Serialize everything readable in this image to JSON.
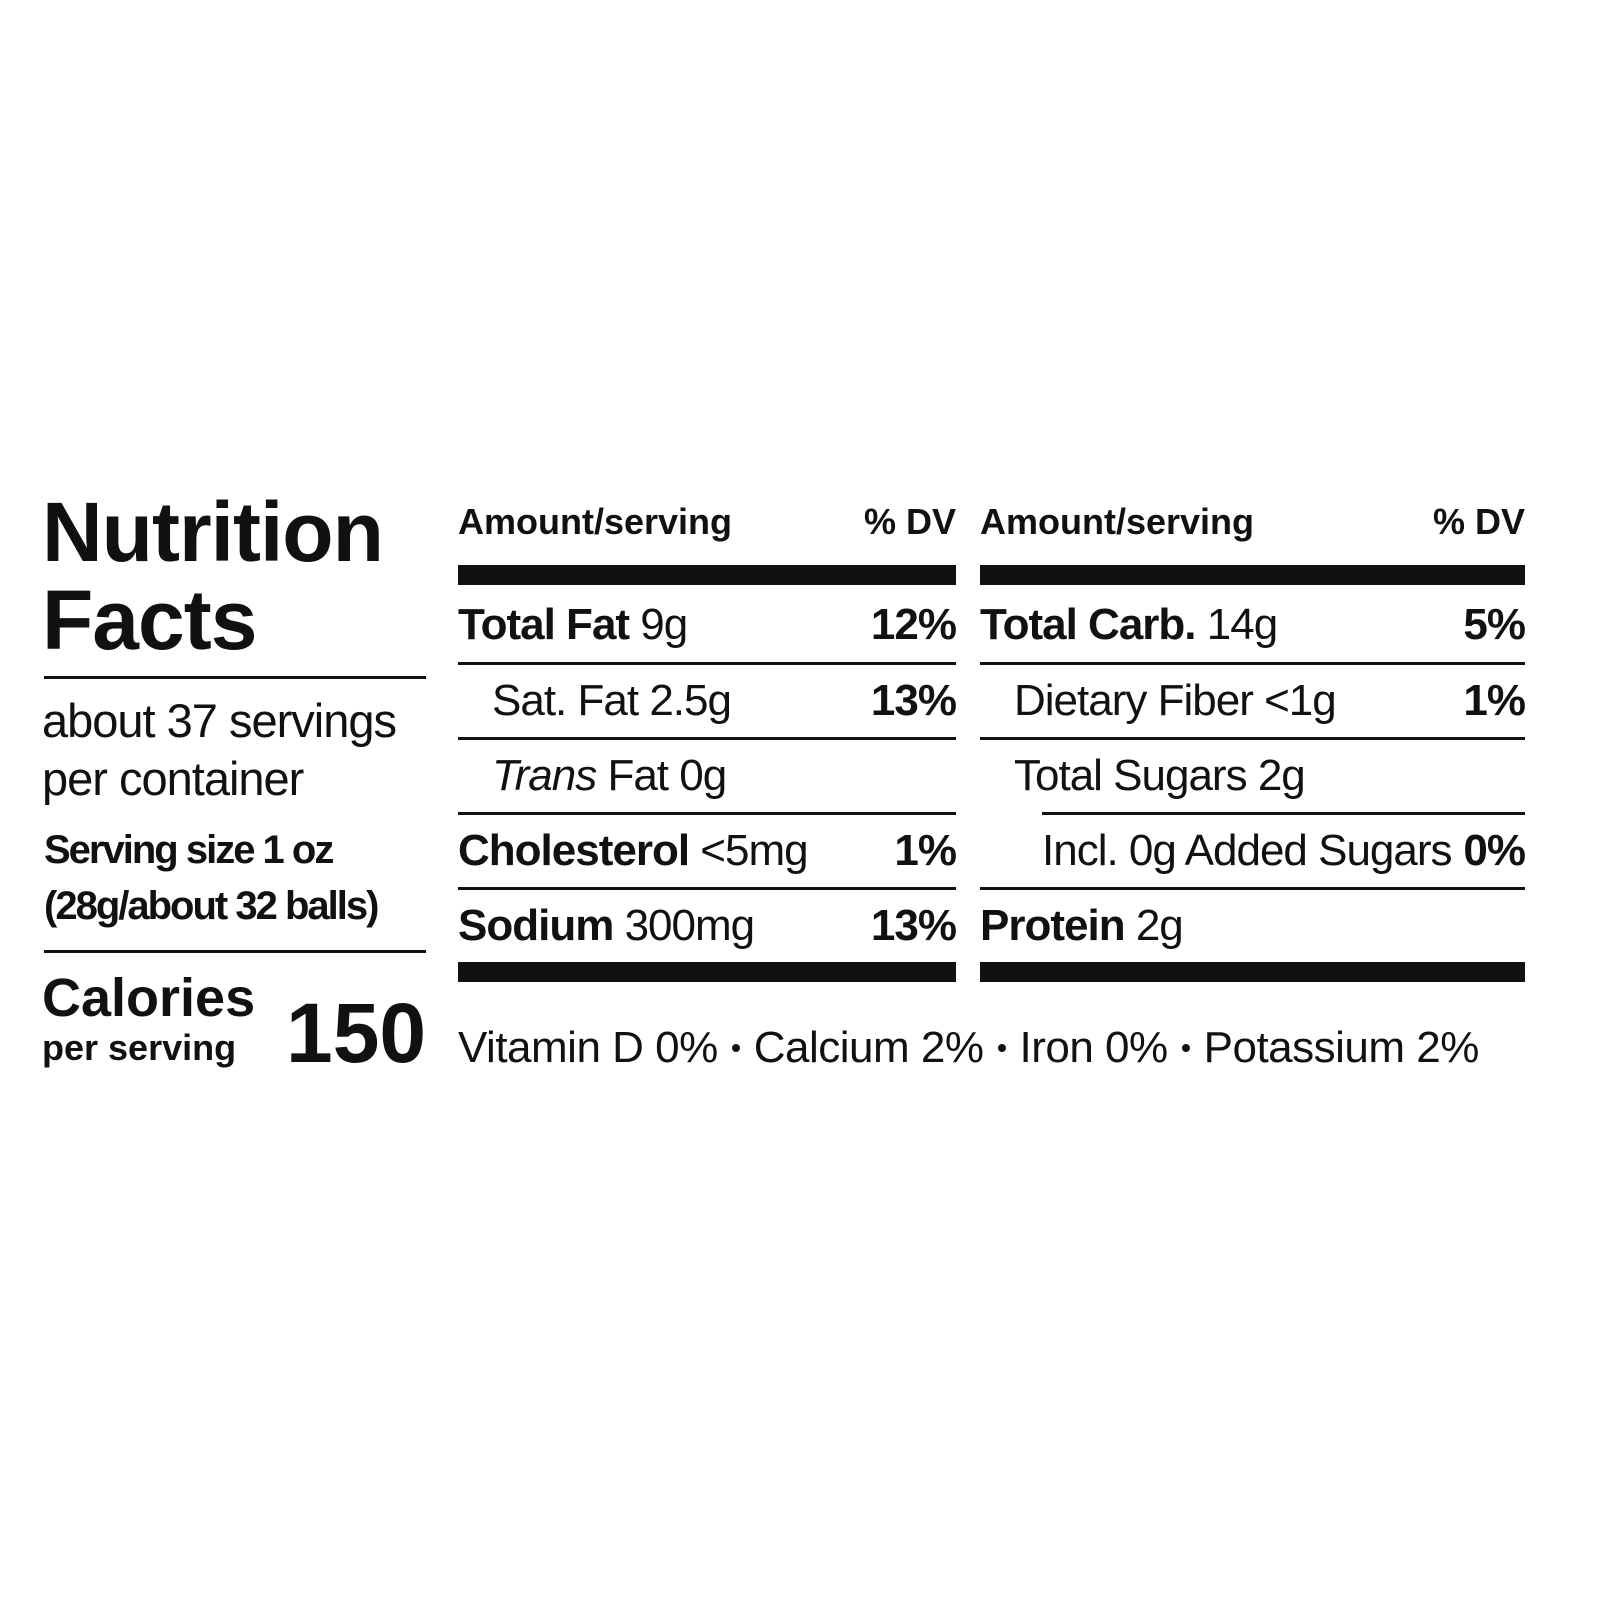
{
  "title": "Nutrition Facts",
  "servings": "about 37 servings per container",
  "serving_size": [
    "Serving size 1 oz",
    "(28g/about 32 balls)"
  ],
  "calories": {
    "label": "Calories",
    "sublabel": "per serving",
    "value": "150"
  },
  "columns": [
    {
      "header": {
        "amount": "Amount/serving",
        "dv": "% DV"
      },
      "rows": [
        {
          "name": "Total Fat",
          "amount": "9g",
          "dv": "12%",
          "bold": true,
          "level": 0
        },
        {
          "name": "Sat. Fat",
          "amount": "2.5g",
          "dv": "13%",
          "bold": false,
          "level": 1
        },
        {
          "name_italic": "Trans",
          "name": "Fat",
          "amount": "0g",
          "bold": false,
          "level": 1
        },
        {
          "name": "Cholesterol",
          "amount": "<5mg",
          "dv": "1%",
          "bold": true,
          "level": 0
        },
        {
          "name": "Sodium",
          "amount": "300mg",
          "dv": "13%",
          "bold": true,
          "level": 0
        }
      ]
    },
    {
      "header": {
        "amount": "Amount/serving",
        "dv": "% DV"
      },
      "rows": [
        {
          "name": "Total Carb.",
          "amount": "14g",
          "dv": "5%",
          "bold": true,
          "level": 0
        },
        {
          "name": "Dietary Fiber",
          "amount": "<1g",
          "dv": "1%",
          "bold": false,
          "level": 1
        },
        {
          "name": "Total Sugars",
          "amount": "2g",
          "bold": false,
          "level": 1
        },
        {
          "name": "Incl. 0g Added Sugars",
          "dv": "0%",
          "bold": false,
          "level": 2
        },
        {
          "name": "Protein",
          "amount": "2g",
          "bold": true,
          "level": 0
        }
      ]
    }
  ],
  "vitamins": [
    "Vitamin D 0%",
    "Calcium 2%",
    "Iron 0%",
    "Potassium 2%"
  ]
}
